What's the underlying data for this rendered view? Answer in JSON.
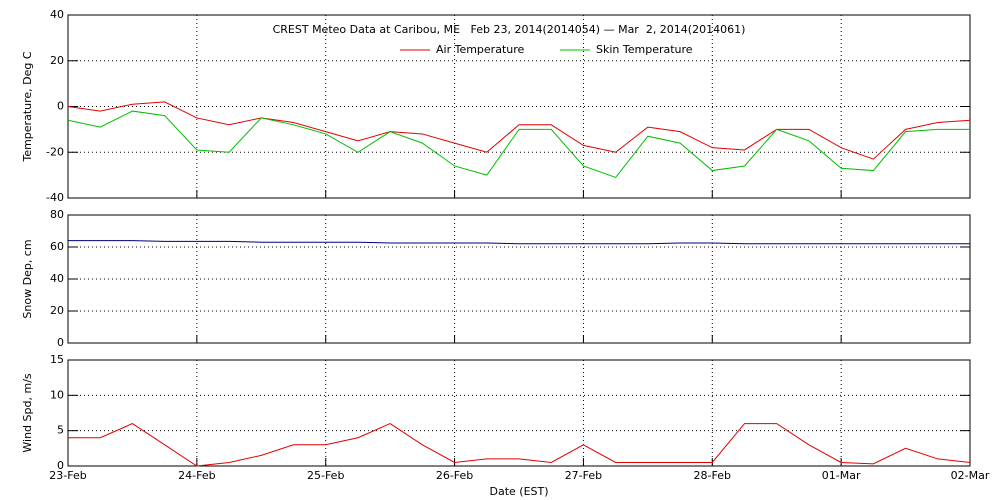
{
  "chart_data": [
    {
      "type": "line",
      "title": "CREST Meteo Data at Caribou, ME   Feb 23, 2014(2014054) — Mar  2, 2014(2014061)",
      "y_label": "Temperature, Deg C",
      "x": [
        0,
        0.25,
        0.5,
        0.75,
        1,
        1.25,
        1.5,
        1.75,
        2,
        2.25,
        2.5,
        2.75,
        3,
        3.25,
        3.5,
        3.75,
        4,
        4.25,
        4.5,
        4.75,
        5,
        5.25,
        5.5,
        5.75,
        6,
        6.25,
        6.5,
        6.75,
        7
      ],
      "series": [
        {
          "name": "Air Temperature",
          "color": "#e00000",
          "values": [
            0,
            -2,
            1,
            2,
            -5,
            -8,
            -5,
            -7,
            -11,
            -15,
            -11,
            -12,
            -16,
            -20,
            -8,
            -8,
            -17,
            -20,
            -9,
            -11,
            -18,
            -19,
            -10,
            -10,
            -18,
            -23,
            -10,
            -7,
            -6
          ]
        },
        {
          "name": "Skin Temperature",
          "color": "#00c000",
          "values": [
            -6,
            -9,
            -2,
            -4,
            -19,
            -20,
            -5,
            -8,
            -12,
            -20,
            -11,
            -16,
            -26,
            -30,
            -10,
            -10,
            -26,
            -31,
            -13,
            -16,
            -28,
            -26,
            -10,
            -15,
            -27,
            -28,
            -11,
            -10,
            -10
          ]
        }
      ],
      "xlim": [
        0,
        7
      ],
      "xticks": [
        0,
        1,
        2,
        3,
        4,
        5,
        6,
        7
      ],
      "ylim": [
        -40,
        40
      ],
      "yticks": [
        -40,
        -20,
        0,
        20,
        40
      ],
      "grid": true
    },
    {
      "type": "line",
      "y_label": "Snow Dep, cm",
      "x": [
        0,
        0.25,
        0.5,
        0.75,
        1,
        1.25,
        1.5,
        1.75,
        2,
        2.25,
        2.5,
        2.75,
        3,
        3.25,
        3.5,
        3.75,
        4,
        4.25,
        4.5,
        4.75,
        5,
        5.25,
        5.5,
        5.75,
        6,
        6.25,
        6.5,
        6.75,
        7
      ],
      "series": [
        {
          "name": "Snow Depth",
          "color": "#000080",
          "values": [
            64,
            64,
            64,
            63.5,
            63.5,
            63.5,
            63,
            63,
            63,
            63,
            62.5,
            62.5,
            62.5,
            62.5,
            62,
            62,
            62,
            62,
            62,
            62.5,
            62.5,
            62,
            62,
            62,
            62,
            62,
            62,
            62,
            62
          ]
        }
      ],
      "xlim": [
        0,
        7
      ],
      "xticks": [
        0,
        1,
        2,
        3,
        4,
        5,
        6,
        7
      ],
      "ylim": [
        0,
        80
      ],
      "yticks": [
        0,
        20,
        40,
        60,
        80
      ],
      "grid": true
    },
    {
      "type": "line",
      "y_label": "Wind Spd, m/s",
      "x_label": "Date (EST)",
      "x": [
        0,
        0.25,
        0.5,
        0.75,
        1,
        1.25,
        1.5,
        1.75,
        2,
        2.25,
        2.5,
        2.75,
        3,
        3.25,
        3.5,
        3.75,
        4,
        4.25,
        4.5,
        4.75,
        5,
        5.25,
        5.5,
        5.75,
        6,
        6.25,
        6.5,
        6.75,
        7
      ],
      "series": [
        {
          "name": "Wind Speed",
          "color": "#e00000",
          "values": [
            4,
            4,
            6,
            3,
            0,
            0.5,
            1.5,
            3,
            3,
            4,
            6,
            3,
            0.5,
            1,
            1,
            0.5,
            3,
            0.5,
            0.5,
            0.5,
            0.5,
            6,
            6,
            3,
            0.5,
            0.3,
            2.5,
            1,
            0.5
          ]
        }
      ],
      "xlim": [
        0,
        7
      ],
      "xticks": [
        {
          "value": 0,
          "label": "23-Feb"
        },
        {
          "value": 1,
          "label": "24-Feb"
        },
        {
          "value": 2,
          "label": "25-Feb"
        },
        {
          "value": 3,
          "label": "26-Feb"
        },
        {
          "value": 4,
          "label": "27-Feb"
        },
        {
          "value": 5,
          "label": "28-Feb"
        },
        {
          "value": 6,
          "label": "01-Mar"
        },
        {
          "value": 7,
          "label": "02-Mar"
        }
      ],
      "ylim": [
        0,
        15
      ],
      "yticks": [
        0,
        5,
        10,
        15
      ],
      "grid": true
    }
  ]
}
